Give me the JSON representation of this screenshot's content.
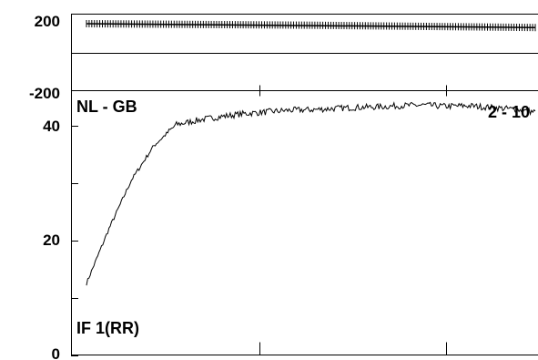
{
  "chart_data": [
    {
      "panel": "phase",
      "type": "scatter",
      "ylim": [
        -200,
        200
      ],
      "y_tick_labels": [
        "200",
        "-200"
      ],
      "x": [
        2,
        3,
        4,
        5,
        6,
        7,
        8,
        9,
        10
      ],
      "values": [
        150,
        148,
        146,
        144,
        142,
        139,
        136,
        133,
        130
      ],
      "grid": false
    },
    {
      "panel": "amplitude",
      "type": "line",
      "ylim": [
        0,
        42
      ],
      "y_tick_labels": [
        "40",
        "20",
        "0"
      ],
      "y_ticks": [
        0,
        10,
        20,
        30,
        40
      ],
      "x_ticks_count": 3,
      "x": [
        0.0,
        0.05,
        0.1,
        0.15,
        0.2,
        0.25,
        0.3,
        0.35,
        0.4,
        0.45,
        0.5,
        0.55,
        0.6,
        0.65,
        0.7,
        0.75,
        0.8,
        0.85,
        0.9,
        0.95,
        1.0
      ],
      "values": [
        12.5,
        22,
        30.5,
        36.5,
        40.2,
        41.0,
        41.6,
        42.1,
        42.4,
        42.7,
        42.8,
        43.0,
        43.2,
        43.3,
        43.5,
        43.6,
        43.4,
        43.5,
        43.2,
        42.9,
        42.4
      ],
      "annotations": [
        "NL - GB",
        "2 - 10",
        "IF 1(RR)"
      ],
      "grid": false
    }
  ],
  "labels": {
    "phase_top": "200",
    "phase_bottom": "-200",
    "amp_40": "40",
    "amp_20": "20",
    "amp_0": "0",
    "baseline": "NL - GB",
    "baseline_range": "2 - 10",
    "if_label": "IF 1(RR)"
  }
}
